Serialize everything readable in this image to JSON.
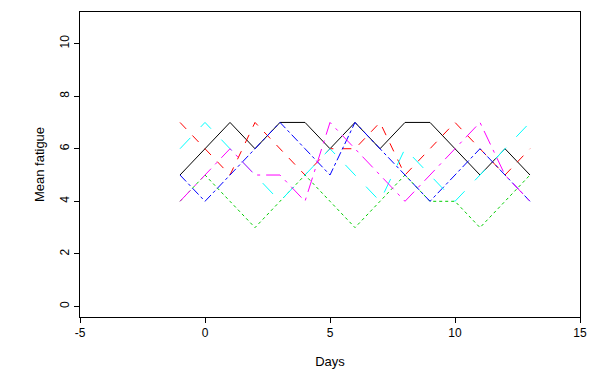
{
  "chart_data": {
    "type": "line",
    "x_label": "Days",
    "y_label": "Mean fatigue",
    "x": [
      -1,
      0,
      1,
      2,
      3,
      4,
      5,
      6,
      7,
      8,
      9,
      10,
      11,
      12,
      13
    ],
    "series": [
      {
        "color": "#000000",
        "line_style": "solid",
        "values": [
          5,
          6,
          7,
          6,
          7,
          7,
          6,
          7,
          6,
          7,
          7,
          6,
          5,
          6,
          5
        ]
      },
      {
        "color": "#ff0000",
        "line_style": "dashed",
        "values": [
          7,
          6,
          5,
          7,
          6,
          5,
          6,
          6,
          7,
          5,
          6,
          7,
          6,
          5,
          6
        ]
      },
      {
        "color": "#00cd00",
        "line_style": "dotted",
        "values": [
          4,
          5,
          4,
          3,
          4,
          5,
          4,
          3,
          4,
          5,
          4,
          4,
          3,
          4,
          5
        ]
      },
      {
        "color": "#0000ff",
        "line_style": "dotdash",
        "values": [
          5,
          4,
          5,
          6,
          7,
          6,
          5,
          7,
          6,
          5,
          4,
          5,
          6,
          5,
          4
        ]
      },
      {
        "color": "#00ffff",
        "line_style": "longdash",
        "values": [
          6,
          7,
          6,
          5,
          4,
          5,
          6,
          5,
          4,
          6,
          5,
          4,
          5,
          6,
          7
        ]
      },
      {
        "color": "#ff00ff",
        "line_style": "twodash",
        "values": [
          4,
          5,
          6,
          5,
          5,
          4,
          7,
          6,
          5,
          4,
          5,
          6,
          7,
          5,
          4
        ]
      }
    ],
    "xlim": [
      -5,
      15
    ],
    "xticks": [
      -5,
      0,
      5,
      10,
      15
    ],
    "ylim": [
      -0.4,
      11.2
    ],
    "yticks": [
      0,
      2,
      4,
      6,
      8,
      10
    ],
    "grid": false
  }
}
